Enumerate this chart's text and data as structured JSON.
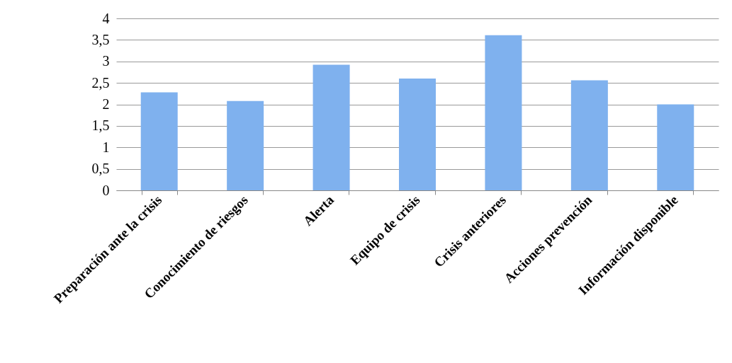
{
  "chart_data": {
    "type": "bar",
    "categories": [
      "Preparación ante la crisis",
      "Conocimiento de riesgos",
      "Alerta",
      "Equipo de crisis",
      "Crisis anteriores",
      "Acciones prevención",
      "Información disponible"
    ],
    "values": [
      2.28,
      2.08,
      2.92,
      2.6,
      3.61,
      2.56,
      2.0
    ],
    "color": "#7fb1ee",
    "ylim": [
      0,
      4
    ],
    "yticks": [
      {
        "value": 0,
        "label": "0"
      },
      {
        "value": 0.5,
        "label": "0,5"
      },
      {
        "value": 1,
        "label": "1"
      },
      {
        "value": 1.5,
        "label": "1,5"
      },
      {
        "value": 2,
        "label": "2"
      },
      {
        "value": 2.5,
        "label": "2,5"
      },
      {
        "value": 3,
        "label": "3"
      },
      {
        "value": 3.5,
        "label": "3,5"
      },
      {
        "value": 4,
        "label": "4"
      }
    ],
    "grid": "y"
  }
}
